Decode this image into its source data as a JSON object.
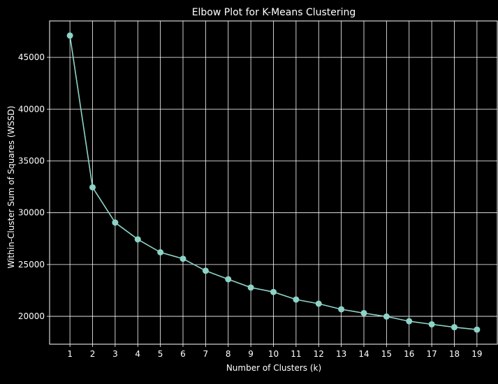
{
  "chart_data": {
    "type": "line",
    "title": "Elbow Plot for K-Means Clustering",
    "xlabel": "Number of Clusters (k)",
    "ylabel": "Within-Cluster Sum of Squares (WSSD)",
    "x": [
      1,
      2,
      3,
      4,
      5,
      6,
      7,
      8,
      9,
      10,
      11,
      12,
      13,
      14,
      15,
      16,
      17,
      18,
      19
    ],
    "series": [
      {
        "values": [
          47100,
          32450,
          29050,
          27430,
          26180,
          25560,
          24400,
          23580,
          22780,
          22350,
          21620,
          21220,
          20680,
          20310,
          19980,
          19530,
          19230,
          18950,
          18720
        ]
      }
    ],
    "xticks": [
      "1",
      "2",
      "3",
      "4",
      "5",
      "6",
      "7",
      "8",
      "9",
      "10",
      "11",
      "12",
      "13",
      "14",
      "15",
      "16",
      "17",
      "18",
      "19"
    ],
    "yticks": [
      "20000",
      "25000",
      "30000",
      "35000",
      "40000",
      "45000"
    ],
    "ytick_values": [
      20000,
      25000,
      30000,
      35000,
      40000,
      45000
    ],
    "xlim": [
      0.1,
      19.9
    ],
    "ylim": [
      17310,
      48510
    ],
    "grid": true,
    "legend": "none",
    "colors": {
      "background": "#000000",
      "line": "#8dd3c7",
      "grid": "#ffffff",
      "text": "#ffffff"
    }
  }
}
